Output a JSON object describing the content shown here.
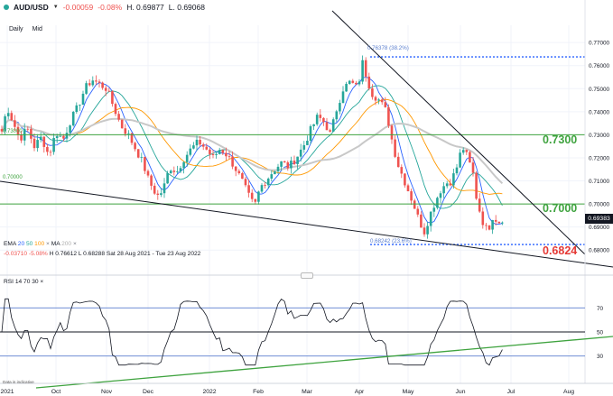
{
  "header": {
    "symbol": "AUD/USD",
    "change": "-0.00059",
    "change_pct": "-0.08%",
    "high": "H. 0.69877",
    "low": "L. 0.69068",
    "timeframe": "Daily",
    "price_type": "Mid"
  },
  "indicators": {
    "ema_label": "EMA",
    "ema_20": "20",
    "ema_50": "50",
    "ema_100": "100",
    "ma_label": "MA",
    "ma_200": "200",
    "close_icon": "x-icon",
    "stats_change": "-0.03710",
    "stats_change_pct": "-5.08%",
    "stats_high": "H 0.76612",
    "stats_low": "L 0.68288",
    "stats_range": "Sat 28 Aug 2021 - Tue 23 Aug 2022"
  },
  "rsi": {
    "label": "RSI",
    "period": "14",
    "upper": "70",
    "lower": "30",
    "level_70": "70",
    "level_50": "50",
    "level_30": "30"
  },
  "price_tag": "0.69383",
  "levels": {
    "l7300": "0.7300",
    "l7000": "0.7000",
    "l6824": "0.6824",
    "tag_7300": "0.73000",
    "tag_7000": "0.70000"
  },
  "fib": {
    "top": "0.76378 (38.2%)",
    "bottom": "0.68242 (23.6%)"
  },
  "disclaimer": "Data is indicative",
  "colors": {
    "up": "#26a69a",
    "down": "#ef5350",
    "level_green": "#3fa33f",
    "level_red": "#e53935",
    "fib_blue": "#2962ff"
  },
  "chart_data": {
    "type": "candlestick",
    "ylim": [
      0.675,
      0.7775
    ],
    "yticks": [
      "0.77000",
      "0.76000",
      "0.75000",
      "0.74000",
      "0.73000",
      "0.72000",
      "0.71000",
      "0.70000",
      "0.69000",
      "0.68000"
    ],
    "xticks": [
      "2021",
      "Oct",
      "Nov",
      "Dec",
      "2022",
      "Feb",
      "Mar",
      "Apr",
      "May",
      "Jun",
      "Jul",
      "Aug"
    ],
    "horizontal_levels": [
      0.73,
      0.7,
      0.68242,
      0.76378
    ],
    "rsi_levels": [
      70,
      50,
      30
    ],
    "path_points": [
      [
        0,
        0.728
      ],
      [
        8,
        0.742
      ],
      [
        14,
        0.736
      ],
      [
        22,
        0.728
      ],
      [
        30,
        0.733
      ],
      [
        38,
        0.725
      ],
      [
        46,
        0.729
      ],
      [
        54,
        0.721
      ],
      [
        62,
        0.731
      ],
      [
        70,
        0.728
      ],
      [
        78,
        0.736
      ],
      [
        86,
        0.742
      ],
      [
        94,
        0.75
      ],
      [
        102,
        0.754
      ],
      [
        110,
        0.752
      ],
      [
        118,
        0.75
      ],
      [
        126,
        0.742
      ],
      [
        134,
        0.734
      ],
      [
        142,
        0.73
      ],
      [
        150,
        0.724
      ],
      [
        158,
        0.718
      ],
      [
        164,
        0.711
      ],
      [
        170,
        0.706
      ],
      [
        176,
        0.703
      ],
      [
        182,
        0.708
      ],
      [
        188,
        0.716
      ],
      [
        196,
        0.714
      ],
      [
        204,
        0.72
      ],
      [
        212,
        0.724
      ],
      [
        220,
        0.727
      ],
      [
        228,
        0.724
      ],
      [
        236,
        0.72
      ],
      [
        244,
        0.724
      ],
      [
        252,
        0.721
      ],
      [
        260,
        0.716
      ],
      [
        268,
        0.71
      ],
      [
        276,
        0.703
      ],
      [
        282,
        0.699
      ],
      [
        288,
        0.707
      ],
      [
        296,
        0.711
      ],
      [
        304,
        0.715
      ],
      [
        312,
        0.718
      ],
      [
        320,
        0.716
      ],
      [
        328,
        0.72
      ],
      [
        336,
        0.725
      ],
      [
        344,
        0.732
      ],
      [
        352,
        0.738
      ],
      [
        360,
        0.735
      ],
      [
        366,
        0.73
      ],
      [
        372,
        0.74
      ],
      [
        380,
        0.75
      ],
      [
        388,
        0.753
      ],
      [
        396,
        0.75
      ],
      [
        402,
        0.762
      ],
      [
        406,
        0.755
      ],
      [
        412,
        0.748
      ],
      [
        420,
        0.745
      ],
      [
        428,
        0.74
      ],
      [
        434,
        0.728
      ],
      [
        440,
        0.718
      ],
      [
        446,
        0.712
      ],
      [
        452,
        0.706
      ],
      [
        458,
        0.7
      ],
      [
        464,
        0.693
      ],
      [
        470,
        0.688
      ],
      [
        476,
        0.695
      ],
      [
        482,
        0.701
      ],
      [
        488,
        0.706
      ],
      [
        494,
        0.709
      ],
      [
        500,
        0.71
      ],
      [
        506,
        0.716
      ],
      [
        512,
        0.725
      ],
      [
        518,
        0.72
      ],
      [
        524,
        0.713
      ],
      [
        528,
        0.702
      ],
      [
        534,
        0.693
      ],
      [
        540,
        0.688
      ],
      [
        546,
        0.695
      ],
      [
        552,
        0.692
      ],
      [
        557,
        0.6938
      ]
    ]
  }
}
